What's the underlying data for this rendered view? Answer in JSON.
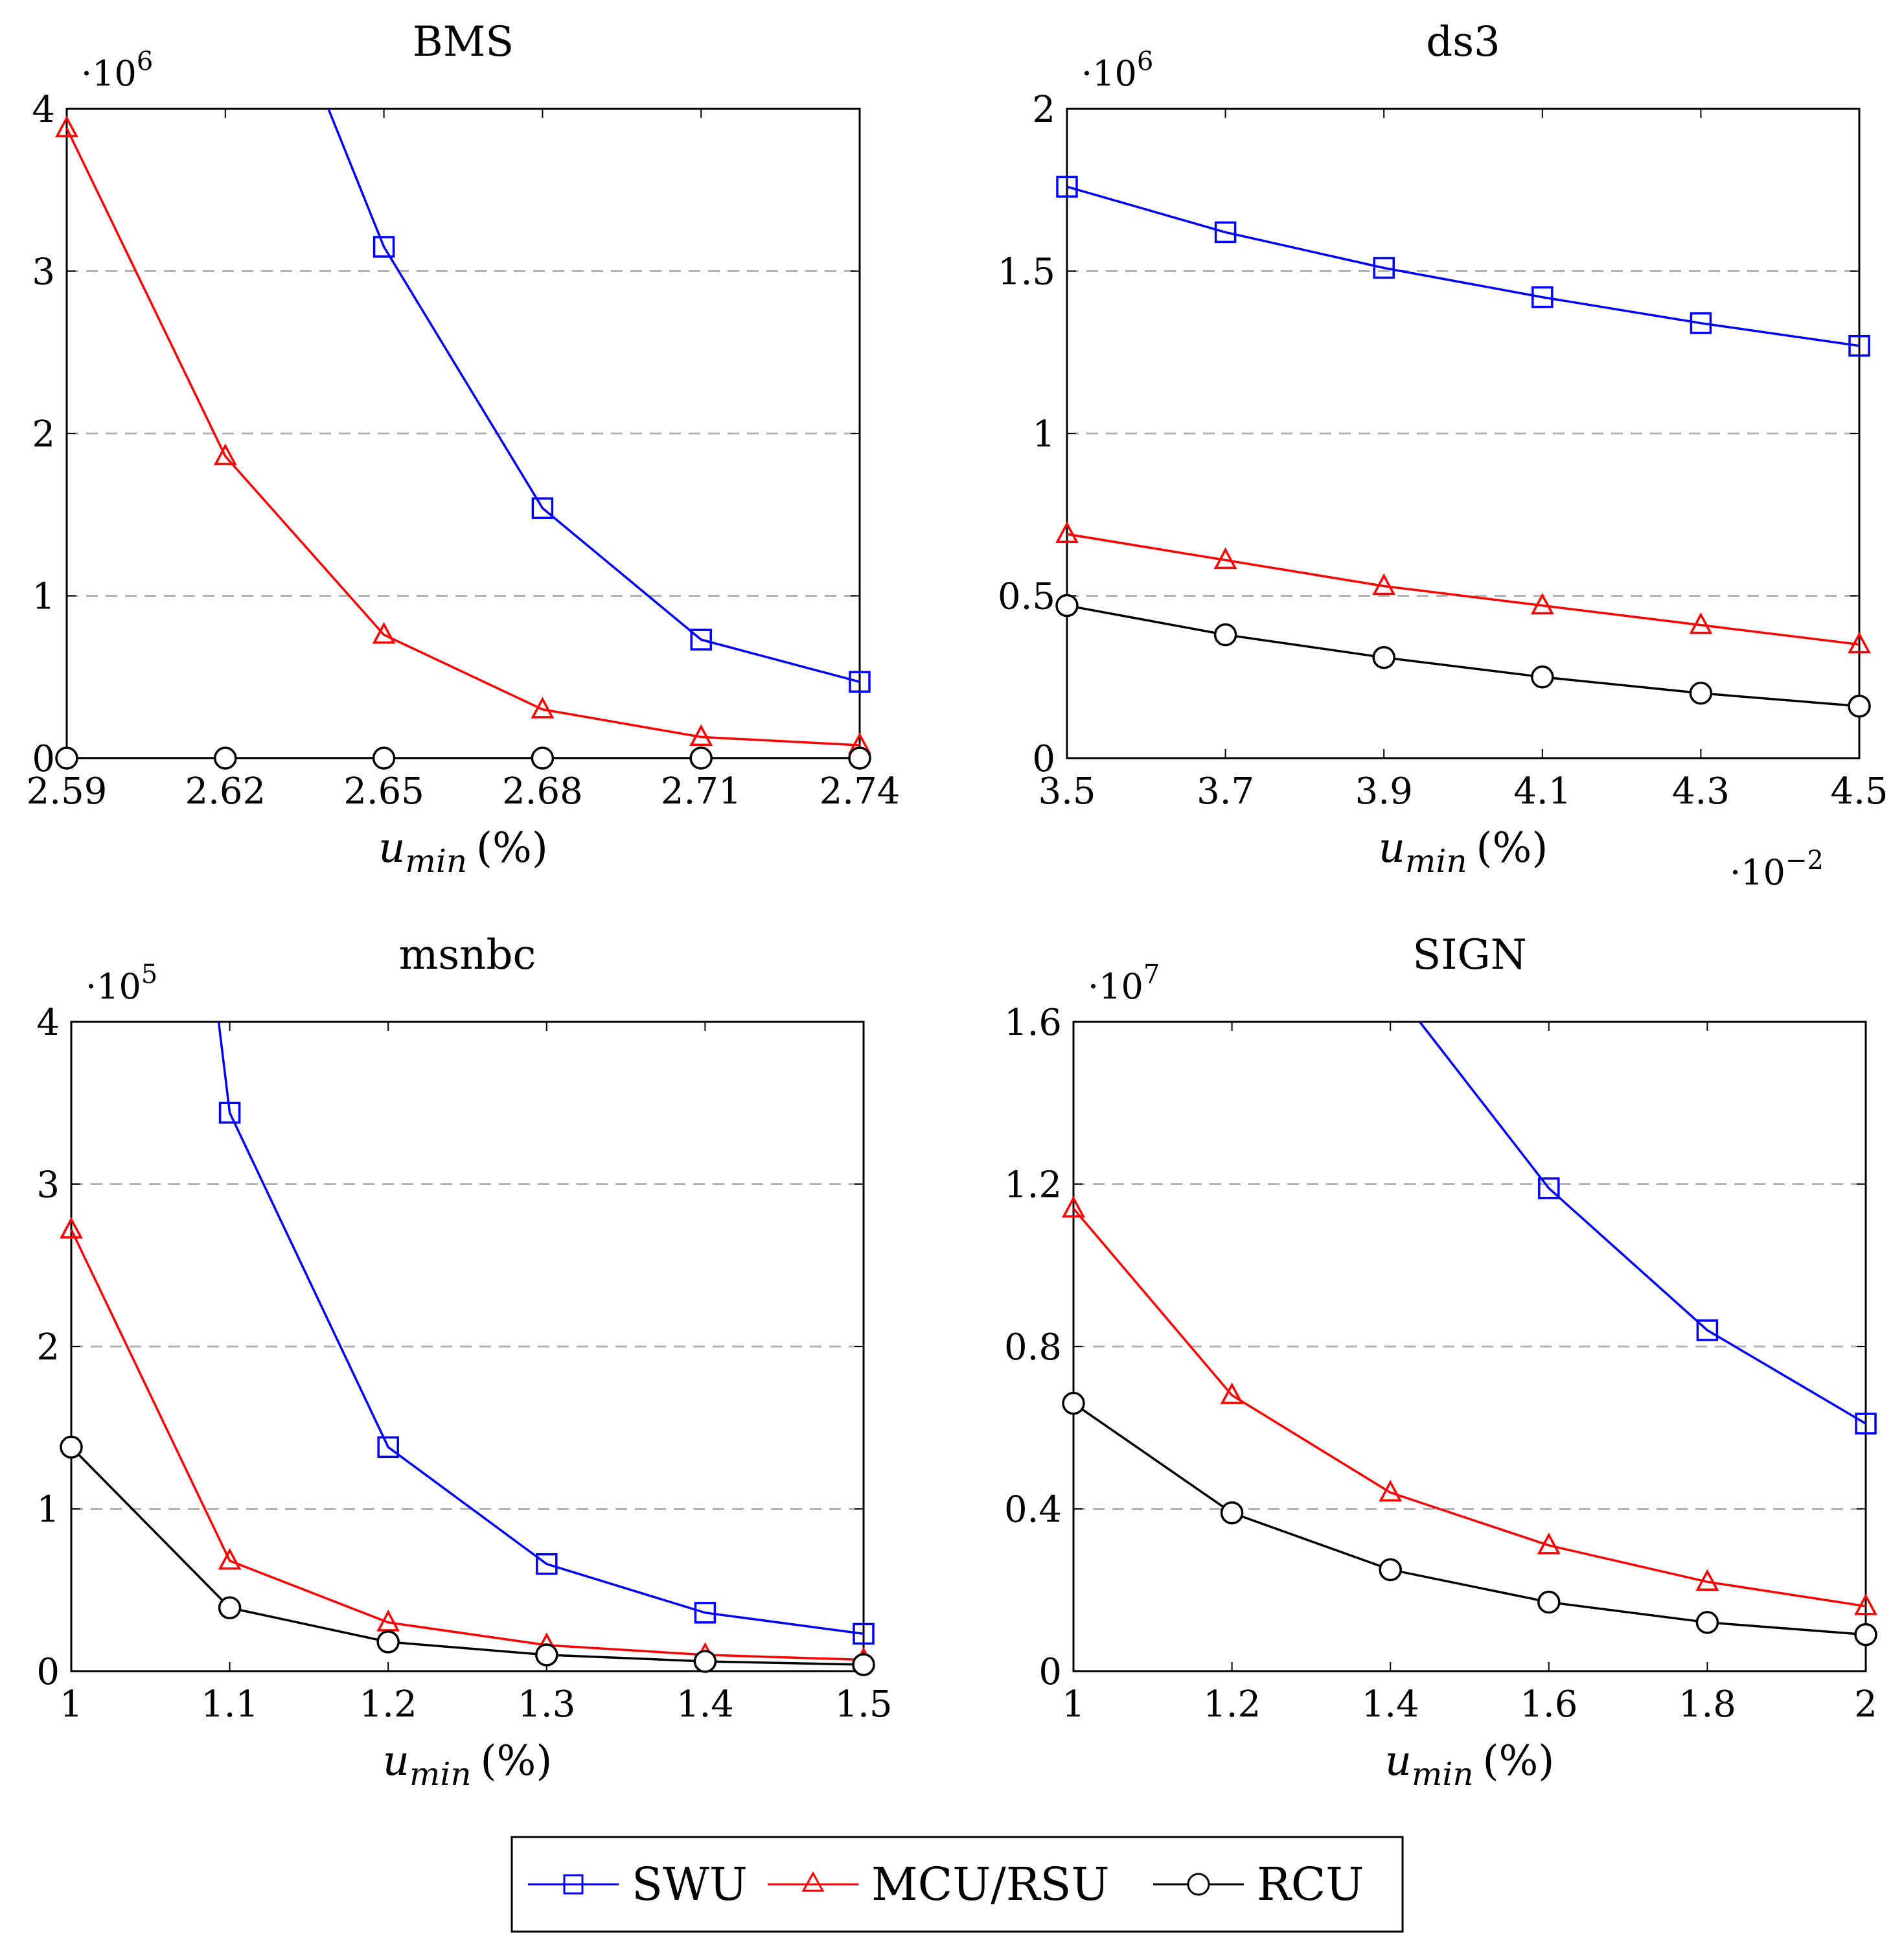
{
  "legend": [
    {
      "name": "SWU",
      "color": "#0000ff",
      "marker": "square-marker",
      "text_color": "#1f77b4"
    },
    {
      "name": "MCU/RSU",
      "color": "#ff0000",
      "marker": "triangle-marker",
      "text_color": "#1f77b4"
    },
    {
      "name": "RCU",
      "color": "#000000",
      "marker": "circle-marker",
      "text_color": "#1f77b4"
    }
  ],
  "chart_data": [
    {
      "type": "line",
      "title": "BMS",
      "xlabel_main": "u",
      "xlabel_sub": "min",
      "xlabel_unit": "(%)",
      "y_multiplier_base": "·10",
      "y_multiplier_exp": "6",
      "x_multiplier_base": "",
      "x_multiplier_exp": "",
      "x": [
        2.59,
        2.62,
        2.65,
        2.68,
        2.71,
        2.74
      ],
      "x_ticks": [
        "2.59",
        "2.62",
        "2.65",
        "2.68",
        "2.71",
        "2.74"
      ],
      "xlim": [
        2.59,
        2.74
      ],
      "y_ticks": [
        0,
        1,
        2,
        3,
        4
      ],
      "y_tick_labels": [
        "0",
        "1",
        "2",
        "3",
        "4"
      ],
      "ylim": [
        0,
        4
      ],
      "grid_y": [
        1,
        2,
        3
      ],
      "series": [
        {
          "name": "SWU",
          "x": [
            2.6395,
            2.65,
            2.68,
            2.71,
            2.74
          ],
          "values": [
            4.0,
            3.15,
            1.54,
            0.73,
            0.47
          ],
          "markers": [
            false,
            true,
            true,
            true,
            true
          ]
        },
        {
          "name": "MCU/RSU",
          "x": [
            2.59,
            2.62,
            2.65,
            2.68,
            2.71,
            2.74
          ],
          "values": [
            3.88,
            1.86,
            0.76,
            0.3,
            0.13,
            0.08
          ],
          "markers": [
            true,
            true,
            true,
            true,
            true,
            true
          ]
        },
        {
          "name": "RCU",
          "x": [
            2.59,
            2.62,
            2.65,
            2.68,
            2.71,
            2.74
          ],
          "values": [
            0.0,
            0.0,
            0.0,
            0.0,
            0.0,
            0.0
          ],
          "markers": [
            true,
            true,
            true,
            true,
            true,
            true
          ]
        }
      ]
    },
    {
      "type": "line",
      "title": "ds3",
      "xlabel_main": "u",
      "xlabel_sub": "min",
      "xlabel_unit": "(%)",
      "y_multiplier_base": "·10",
      "y_multiplier_exp": "6",
      "x_multiplier_base": "·10",
      "x_multiplier_exp": "−2",
      "x": [
        3.5,
        3.7,
        3.9,
        4.1,
        4.3,
        4.5
      ],
      "x_ticks": [
        "3.5",
        "3.7",
        "3.9",
        "4.1",
        "4.3",
        "4.5"
      ],
      "xlim": [
        3.5,
        4.5
      ],
      "y_ticks": [
        0,
        0.5,
        1,
        1.5,
        2
      ],
      "y_tick_labels": [
        "0",
        "0.5",
        "1",
        "1.5",
        "2"
      ],
      "ylim": [
        0,
        2
      ],
      "grid_y": [
        0.5,
        1,
        1.5
      ],
      "series": [
        {
          "name": "SWU",
          "x": [
            3.5,
            3.7,
            3.9,
            4.1,
            4.3,
            4.5
          ],
          "values": [
            1.76,
            1.62,
            1.51,
            1.42,
            1.34,
            1.27
          ],
          "markers": [
            true,
            true,
            true,
            true,
            true,
            true
          ]
        },
        {
          "name": "MCU/RSU",
          "x": [
            3.5,
            3.7,
            3.9,
            4.1,
            4.3,
            4.5
          ],
          "values": [
            0.69,
            0.61,
            0.53,
            0.47,
            0.41,
            0.35
          ],
          "markers": [
            true,
            true,
            true,
            true,
            true,
            true
          ]
        },
        {
          "name": "RCU",
          "x": [
            3.5,
            3.7,
            3.9,
            4.1,
            4.3,
            4.5
          ],
          "values": [
            0.47,
            0.38,
            0.31,
            0.25,
            0.2,
            0.16
          ],
          "markers": [
            true,
            true,
            true,
            true,
            true,
            true
          ]
        }
      ]
    },
    {
      "type": "line",
      "title": "msnbc",
      "xlabel_main": "u",
      "xlabel_sub": "min",
      "xlabel_unit": "(%)",
      "y_multiplier_base": "·10",
      "y_multiplier_exp": "5",
      "x_multiplier_base": "",
      "x_multiplier_exp": "",
      "x": [
        1,
        1.1,
        1.2,
        1.3,
        1.4,
        1.5
      ],
      "x_ticks": [
        "1",
        "1.1",
        "1.2",
        "1.3",
        "1.4",
        "1.5"
      ],
      "xlim": [
        1,
        1.5
      ],
      "y_ticks": [
        0,
        1,
        2,
        3,
        4
      ],
      "y_tick_labels": [
        "0",
        "1",
        "2",
        "3",
        "4"
      ],
      "ylim": [
        0,
        4
      ],
      "grid_y": [
        1,
        2,
        3
      ],
      "series": [
        {
          "name": "SWU",
          "x": [
            1.093,
            1.1,
            1.2,
            1.3,
            1.4,
            1.5
          ],
          "values": [
            4.0,
            3.44,
            1.38,
            0.66,
            0.36,
            0.23
          ],
          "markers": [
            false,
            true,
            true,
            true,
            true,
            true
          ]
        },
        {
          "name": "MCU/RSU",
          "x": [
            1,
            1.1,
            1.2,
            1.3,
            1.4,
            1.5
          ],
          "values": [
            2.72,
            0.68,
            0.3,
            0.16,
            0.1,
            0.07
          ],
          "markers": [
            true,
            true,
            true,
            true,
            true,
            true
          ]
        },
        {
          "name": "RCU",
          "x": [
            1,
            1.1,
            1.2,
            1.3,
            1.4,
            1.5
          ],
          "values": [
            1.38,
            0.39,
            0.18,
            0.1,
            0.06,
            0.04
          ],
          "markers": [
            true,
            true,
            true,
            true,
            true,
            true
          ]
        }
      ]
    },
    {
      "type": "line",
      "title": "SIGN",
      "xlabel_main": "u",
      "xlabel_sub": "min",
      "xlabel_unit": "(%)",
      "y_multiplier_base": "·10",
      "y_multiplier_exp": "7",
      "x_multiplier_base": "",
      "x_multiplier_exp": "",
      "x": [
        1,
        1.2,
        1.4,
        1.6,
        1.8,
        2
      ],
      "x_ticks": [
        "1",
        "1.2",
        "1.4",
        "1.6",
        "1.8",
        "2"
      ],
      "xlim": [
        1,
        2
      ],
      "y_ticks": [
        0,
        0.4,
        0.8,
        1.2,
        1.6
      ],
      "y_tick_labels": [
        "0",
        "0.4",
        "0.8",
        "1.2",
        "1.6"
      ],
      "ylim": [
        0,
        1.6
      ],
      "grid_y": [
        0.4,
        0.8,
        1.2
      ],
      "series": [
        {
          "name": "SWU",
          "x": [
            1.437,
            1.6,
            1.8,
            2
          ],
          "values": [
            1.6,
            1.19,
            0.84,
            0.61
          ],
          "markers": [
            false,
            true,
            true,
            true
          ]
        },
        {
          "name": "MCU/RSU",
          "x": [
            1,
            1.2,
            1.4,
            1.6,
            1.8,
            2
          ],
          "values": [
            1.14,
            0.68,
            0.44,
            0.31,
            0.22,
            0.16
          ],
          "markers": [
            true,
            true,
            true,
            true,
            true,
            true
          ]
        },
        {
          "name": "RCU",
          "x": [
            1,
            1.2,
            1.4,
            1.6,
            1.8,
            2
          ],
          "values": [
            0.66,
            0.39,
            0.25,
            0.17,
            0.12,
            0.09
          ],
          "markers": [
            true,
            true,
            true,
            true,
            true,
            true
          ]
        }
      ]
    }
  ]
}
